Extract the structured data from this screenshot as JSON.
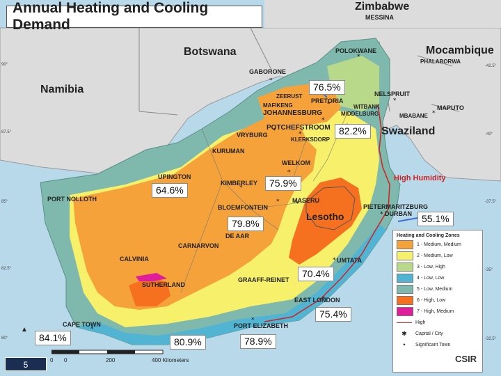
{
  "title": "Annual Heating and Cooling Demand",
  "countries": {
    "zimbabwe": "Zimbabwe",
    "botswana": "Botswana",
    "namibia": "Namibia",
    "mocambique": "Mocambique",
    "swaziland": "Swaziland",
    "lesotho": "Lesotho"
  },
  "cities": {
    "messina": "MESSINA",
    "polokwane": "POLOKWANE",
    "phalaborwa": "PHALABORWA",
    "gaborone": "GABORONE",
    "zeerust": "ZEERUST",
    "mafikeng": "MAFIKENG",
    "pretoria": "PRETORIA",
    "johannesburg": "JOHANNESBURG",
    "nelspruit": "NELSPRUIT",
    "maputo": "MAPUTO",
    "witbank": "WITBANK",
    "middelburg": "MIDDELBURG",
    "mbabane": "MBABANE",
    "potchefstroom": "POTCHEFSTROOM",
    "vryburg": "VRYBURG",
    "klerksdorp": "KLERKSDORP",
    "kuruman": "KURUMAN",
    "welkom": "WELKOM",
    "upington": "UPINGTON",
    "kimberley": "KIMBERLEY",
    "port_nolloth": "PORT NOLLOTH",
    "maseru": "MASERU",
    "bloemfontein": "BLOEMFONTEIN",
    "pietermaritzburg": "PIETERMARITZBURG",
    "durban": "DURBAN",
    "de_aar": "DE AAR",
    "carnarvon": "CARNARVON",
    "calvinia": "CALVINIA",
    "umtata": "UMTATA",
    "sutherland": "SUTHERLAND",
    "graaff_reinet": "GRAAFF-REINET",
    "east_london": "EAST LONDON",
    "cape_town": "CAPE TOWN",
    "port_elizabeth": "PORT ELIZABETH"
  },
  "high_humidity": "High Humidity",
  "percentages": {
    "p_pretoria": "76.5%",
    "p_mpumalanga": "82.2%",
    "p_upington": "64.6%",
    "p_kimberley": "75.9%",
    "p_bloemfontein": "79.8%",
    "p_durban": "55.1%",
    "p_umtata": "70.4%",
    "p_east_london": "75.4%",
    "p_cape_town": "84.1%",
    "p_south_coast": "80.9%",
    "p_port_elizabeth": "78.9%"
  },
  "legend": {
    "title": "Heating and Cooling Zones",
    "items": [
      {
        "label": "1 - Medium, Medium",
        "color": "#f6a23a"
      },
      {
        "label": "2 - Medium, Low",
        "color": "#f7f06a"
      },
      {
        "label": "3 - Low, High",
        "color": "#b9d98a"
      },
      {
        "label": "4 - Low, Low",
        "color": "#52b4d3"
      },
      {
        "label": "5 - Low, Medium",
        "color": "#7fb9ad"
      },
      {
        "label": "6 - High, Low",
        "color": "#f5701f"
      },
      {
        "label": "7 - High, Medium",
        "color": "#e01e9b"
      }
    ],
    "high": "High",
    "capital": "Capital / City",
    "town": "Significant Town"
  },
  "logo": "CSIR",
  "page_number": "5",
  "scale": {
    "t0": "0",
    "t1": "200",
    "t2": "400 Kilometers",
    "pre": "0"
  },
  "coords": {
    "l1": "90°",
    "l2": "87.5°",
    "l3": "85°",
    "l4": "82.5°",
    "l5": "80°",
    "r1": "-42.5°",
    "r2": "-40°",
    "r3": "-37.5°",
    "r4": "-35°",
    "r5": "-32.5°"
  }
}
